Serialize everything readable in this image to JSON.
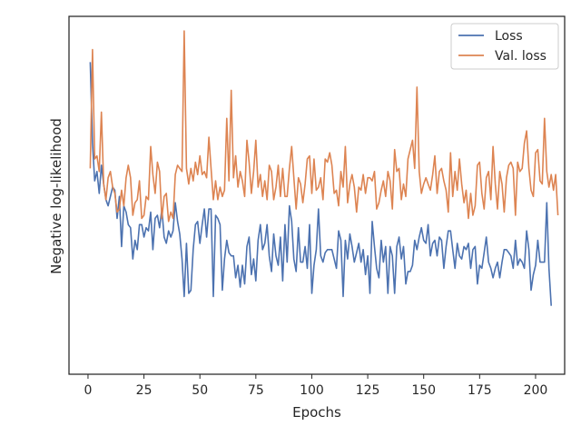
{
  "chart_data": {
    "type": "line",
    "title": "",
    "xlabel": "Epochs",
    "ylabel": "Negative log-likelihood",
    "xlim": [
      -8.5,
      213
    ],
    "ylim": [
      0,
      1
    ],
    "xticks": [
      0,
      25,
      50,
      75,
      100,
      125,
      150,
      175,
      200
    ],
    "x_tick_labels": [
      "0",
      "25",
      "50",
      "75",
      "100",
      "125",
      "150",
      "175",
      "200"
    ],
    "y_tick_labels": [],
    "grid": false,
    "legend": "top-right",
    "colors": {
      "Loss": "#4c72b0",
      "Val. loss": "#dd8452"
    },
    "series": [
      {
        "name": "Loss",
        "start_epoch": 1,
        "values": [
          0.9,
          0.64,
          0.52,
          0.55,
          0.48,
          0.57,
          0.51,
          0.46,
          0.44,
          0.47,
          0.5,
          0.49,
          0.4,
          0.47,
          0.31,
          0.44,
          0.42,
          0.38,
          0.37,
          0.27,
          0.33,
          0.3,
          0.38,
          0.38,
          0.34,
          0.37,
          0.36,
          0.42,
          0.3,
          0.4,
          0.41,
          0.37,
          0.43,
          0.34,
          0.32,
          0.36,
          0.34,
          0.36,
          0.45,
          0.39,
          0.35,
          0.27,
          0.15,
          0.32,
          0.16,
          0.17,
          0.3,
          0.38,
          0.39,
          0.32,
          0.38,
          0.43,
          0.34,
          0.43,
          0.43,
          0.15,
          0.41,
          0.4,
          0.38,
          0.17,
          0.27,
          0.33,
          0.29,
          0.28,
          0.28,
          0.21,
          0.25,
          0.18,
          0.25,
          0.19,
          0.31,
          0.34,
          0.22,
          0.27,
          0.2,
          0.33,
          0.38,
          0.3,
          0.32,
          0.38,
          0.28,
          0.23,
          0.35,
          0.28,
          0.25,
          0.34,
          0.2,
          0.38,
          0.26,
          0.44,
          0.39,
          0.27,
          0.23,
          0.37,
          0.26,
          0.26,
          0.31,
          0.24,
          0.38,
          0.16,
          0.25,
          0.3,
          0.43,
          0.28,
          0.26,
          0.29,
          0.3,
          0.3,
          0.3,
          0.27,
          0.24,
          0.36,
          0.33,
          0.15,
          0.33,
          0.27,
          0.35,
          0.31,
          0.26,
          0.29,
          0.32,
          0.26,
          0.3,
          0.22,
          0.28,
          0.16,
          0.39,
          0.31,
          0.24,
          0.21,
          0.33,
          0.26,
          0.31,
          0.16,
          0.31,
          0.28,
          0.16,
          0.31,
          0.34,
          0.27,
          0.31,
          0.19,
          0.23,
          0.23,
          0.25,
          0.33,
          0.3,
          0.34,
          0.37,
          0.33,
          0.32,
          0.38,
          0.28,
          0.32,
          0.33,
          0.28,
          0.34,
          0.33,
          0.24,
          0.31,
          0.36,
          0.36,
          0.3,
          0.24,
          0.32,
          0.28,
          0.27,
          0.31,
          0.3,
          0.32,
          0.24,
          0.3,
          0.31,
          0.19,
          0.25,
          0.24,
          0.29,
          0.34,
          0.26,
          0.24,
          0.21,
          0.24,
          0.26,
          0.21,
          0.26,
          0.3,
          0.3,
          0.29,
          0.28,
          0.24,
          0.33,
          0.25,
          0.27,
          0.26,
          0.24,
          0.36,
          0.3,
          0.17,
          0.22,
          0.25,
          0.33,
          0.26,
          0.26,
          0.26,
          0.45,
          0.24,
          0.12
        ]
      },
      {
        "name": "Val. loss",
        "start_epoch": 1,
        "values": [
          0.56,
          0.94,
          0.59,
          0.6,
          0.55,
          0.74,
          0.51,
          0.46,
          0.53,
          0.55,
          0.5,
          0.48,
          0.42,
          0.43,
          0.49,
          0.44,
          0.53,
          0.57,
          0.53,
          0.41,
          0.45,
          0.46,
          0.52,
          0.4,
          0.41,
          0.47,
          0.46,
          0.63,
          0.54,
          0.48,
          0.58,
          0.55,
          0.4,
          0.47,
          0.48,
          0.39,
          0.42,
          0.4,
          0.54,
          0.57,
          0.56,
          0.55,
          1.0,
          0.56,
          0.51,
          0.56,
          0.52,
          0.58,
          0.54,
          0.6,
          0.54,
          0.55,
          0.53,
          0.66,
          0.56,
          0.46,
          0.52,
          0.46,
          0.5,
          0.47,
          0.49,
          0.72,
          0.52,
          0.81,
          0.53,
          0.6,
          0.5,
          0.55,
          0.52,
          0.47,
          0.65,
          0.58,
          0.48,
          0.55,
          0.65,
          0.5,
          0.54,
          0.47,
          0.52,
          0.46,
          0.57,
          0.55,
          0.46,
          0.5,
          0.57,
          0.47,
          0.56,
          0.47,
          0.47,
          0.56,
          0.63,
          0.53,
          0.43,
          0.53,
          0.51,
          0.45,
          0.51,
          0.59,
          0.6,
          0.48,
          0.59,
          0.49,
          0.5,
          0.53,
          0.46,
          0.59,
          0.58,
          0.61,
          0.57,
          0.48,
          0.49,
          0.44,
          0.55,
          0.5,
          0.63,
          0.45,
          0.51,
          0.54,
          0.5,
          0.42,
          0.5,
          0.49,
          0.54,
          0.48,
          0.53,
          0.53,
          0.52,
          0.55,
          0.43,
          0.45,
          0.49,
          0.52,
          0.47,
          0.55,
          0.52,
          0.43,
          0.62,
          0.55,
          0.56,
          0.46,
          0.51,
          0.47,
          0.59,
          0.62,
          0.65,
          0.56,
          0.82,
          0.55,
          0.48,
          0.51,
          0.53,
          0.51,
          0.49,
          0.54,
          0.6,
          0.48,
          0.55,
          0.56,
          0.52,
          0.49,
          0.42,
          0.61,
          0.47,
          0.55,
          0.49,
          0.59,
          0.51,
          0.45,
          0.49,
          0.4,
          0.48,
          0.41,
          0.44,
          0.57,
          0.58,
          0.48,
          0.43,
          0.53,
          0.55,
          0.46,
          0.63,
          0.51,
          0.43,
          0.55,
          0.51,
          0.42,
          0.53,
          0.57,
          0.58,
          0.56,
          0.41,
          0.58,
          0.55,
          0.56,
          0.64,
          0.68,
          0.56,
          0.49,
          0.47,
          0.61,
          0.62,
          0.52,
          0.51,
          0.72,
          0.55,
          0.5,
          0.54,
          0.49,
          0.54,
          0.41
        ]
      }
    ]
  }
}
